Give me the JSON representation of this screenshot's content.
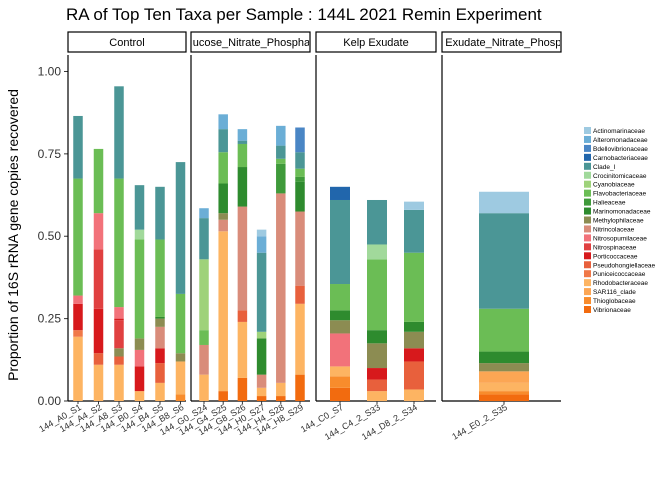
{
  "chart_data": {
    "type": "bar",
    "stacked": true,
    "title": "RA of Top Ten Taxa per Sample : 144L 2021 Remin Experiment",
    "xlabel": "",
    "ylabel": "Proportion of 16S rRNA gene copies recovered",
    "ylim": [
      0,
      1.05
    ],
    "yticks": [
      "0.00",
      "0.25",
      "0.50",
      "0.75",
      "1.00"
    ],
    "legend_position": "right",
    "taxa": [
      {
        "name": "Actinomarinaceae",
        "color": "#9ecae1"
      },
      {
        "name": "Alteromonadaceae",
        "color": "#6baed6"
      },
      {
        "name": "Bdellovibrionaceae",
        "color": "#4a86c5"
      },
      {
        "name": "Carnobacteriaceae",
        "color": "#2166ac"
      },
      {
        "name": "Clade_I",
        "color": "#4b9696"
      },
      {
        "name": "Crocinitomicaceae",
        "color": "#a1d99b"
      },
      {
        "name": "Cyanobiaceae",
        "color": "#9ed27a"
      },
      {
        "name": "Flavobacteriaceae",
        "color": "#6bbd55"
      },
      {
        "name": "Halieaceae",
        "color": "#3f9a3a"
      },
      {
        "name": "Marinomonadaceae",
        "color": "#2e8b2e"
      },
      {
        "name": "Methylophilaceae",
        "color": "#8c8c52"
      },
      {
        "name": "Nitrincolaceae",
        "color": "#d98c7a"
      },
      {
        "name": "Nitrosopumilaceae",
        "color": "#f2727a"
      },
      {
        "name": "Nitrospinaceae",
        "color": "#e04040"
      },
      {
        "name": "Porticoccaceae",
        "color": "#d7191c"
      },
      {
        "name": "Pseudohongiellaceae",
        "color": "#e8603c"
      },
      {
        "name": "Puniceicoccaceae",
        "color": "#f07848"
      },
      {
        "name": "Rhodobacteraceae",
        "color": "#fdb462"
      },
      {
        "name": "SAR116_clade",
        "color": "#fca654"
      },
      {
        "name": "Thioglobaceae",
        "color": "#f88c2c"
      },
      {
        "name": "Vibrionaceae",
        "color": "#f26b0f"
      }
    ],
    "facets": [
      {
        "label": "Control",
        "samples": [
          {
            "label": "144_A0_S1",
            "segments": [
              [
                "Rhodobacteraceae",
                0.195
              ],
              [
                "Puniceicoccaceae",
                0.02
              ],
              [
                "Porticoccaceae",
                0.08
              ],
              [
                "Nitrosopumilaceae",
                0.025
              ],
              [
                "Flavobacteriaceae",
                0.355
              ],
              [
                "Clade_I",
                0.19
              ]
            ]
          },
          {
            "label": "144_A4_S2",
            "segments": [
              [
                "Rhodobacteraceae",
                0.11
              ],
              [
                "Pseudohongiellaceae",
                0.035
              ],
              [
                "Porticoccaceae",
                0.135
              ],
              [
                "Nitrospinaceae",
                0.18
              ],
              [
                "Nitrosopumilaceae",
                0.11
              ],
              [
                "Flavobacteriaceae",
                0.195
              ]
            ]
          },
          {
            "label": "144_A8_S3",
            "segments": [
              [
                "Rhodobacteraceae",
                0.11
              ],
              [
                "Pseudohongiellaceae",
                0.025
              ],
              [
                "Methylophilaceae",
                0.025
              ],
              [
                "Nitrospinaceae",
                0.085
              ],
              [
                "Porticoccaceae",
                0.005
              ],
              [
                "Nitrosopumilaceae",
                0.035
              ],
              [
                "Flavobacteriaceae",
                0.39
              ],
              [
                "Clade_I",
                0.28
              ]
            ]
          },
          {
            "label": "144_B0_S4",
            "segments": [
              [
                "Rhodobacteraceae",
                0.03
              ],
              [
                "Porticoccaceae",
                0.075
              ],
              [
                "Nitrosopumilaceae",
                0.05
              ],
              [
                "Methylophilaceae",
                0.035
              ],
              [
                "Flavobacteriaceae",
                0.3
              ],
              [
                "Crocinitomicaceae",
                0.03
              ],
              [
                "Clade_I",
                0.135
              ]
            ]
          },
          {
            "label": "144_B4_S5",
            "segments": [
              [
                "Rhodobacteraceae",
                0.055
              ],
              [
                "Pseudohongiellaceae",
                0.06
              ],
              [
                "Porticoccaceae",
                0.045
              ],
              [
                "Nitrincolaceae",
                0.065
              ],
              [
                "Methylophilaceae",
                0.025
              ],
              [
                "Marinomonadaceae",
                0.005
              ],
              [
                "Flavobacteriaceae",
                0.235
              ],
              [
                "Clade_I",
                0.16
              ]
            ]
          },
          {
            "label": "144_B8_S6",
            "segments": [
              [
                "Thioglobaceae",
                0.02
              ],
              [
                "Rhodobacteraceae",
                0.1
              ],
              [
                "Methylophilaceae",
                0.025
              ],
              [
                "Flavobacteriaceae",
                0.18
              ],
              [
                "Clade_I",
                0.4
              ]
            ]
          }
        ]
      },
      {
        "label": "Glucose_Nitrate_Phosphate",
        "samples": [
          {
            "label": "144_G0_S24",
            "segments": [
              [
                "Rhodobacteraceae",
                0.08
              ],
              [
                "Nitrincolaceae",
                0.09
              ],
              [
                "Flavobacteriaceae",
                0.045
              ],
              [
                "Cyanobiaceae",
                0.215
              ],
              [
                "Clade_I",
                0.125
              ],
              [
                "Alteromonadaceae",
                0.03
              ]
            ]
          },
          {
            "label": "144_G4_S25",
            "segments": [
              [
                "Vibrionaceae",
                0.03
              ],
              [
                "Rhodobacteraceae",
                0.485
              ],
              [
                "Nitrincolaceae",
                0.035
              ],
              [
                "Methylophilaceae",
                0.02
              ],
              [
                "Marinomonadaceae",
                0.09
              ],
              [
                "Flavobacteriaceae",
                0.095
              ],
              [
                "Clade_I",
                0.07
              ],
              [
                "Alteromonadaceae",
                0.045
              ]
            ]
          },
          {
            "label": "144_G8_S26",
            "segments": [
              [
                "Vibrionaceae",
                0.07
              ],
              [
                "Rhodobacteraceae",
                0.17
              ],
              [
                "Pseudohongiellaceae",
                0.035
              ],
              [
                "Nitrincolaceae",
                0.315
              ],
              [
                "Marinomonadaceae",
                0.12
              ],
              [
                "Flavobacteriaceae",
                0.07
              ],
              [
                "Clade_I",
                0.01
              ],
              [
                "Alteromonadaceae",
                0.035
              ]
            ]
          },
          {
            "label": "144_H0_S27",
            "segments": [
              [
                "Vibrionaceae",
                0.015
              ],
              [
                "Rhodobacteraceae",
                0.025
              ],
              [
                "Nitrincolaceae",
                0.04
              ],
              [
                "Marinomonadaceae",
                0.11
              ],
              [
                "Cyanobiaceae",
                0.02
              ],
              [
                "Clade_I",
                0.24
              ],
              [
                "Alteromonadaceae",
                0.05
              ],
              [
                "Actinomarinaceae",
                0.02
              ]
            ]
          },
          {
            "label": "144_H4_S28",
            "segments": [
              [
                "Vibrionaceae",
                0.015
              ],
              [
                "Rhodobacteraceae",
                0.04
              ],
              [
                "Nitrincolaceae",
                0.575
              ],
              [
                "Halieaceae",
                0.09
              ],
              [
                "Flavobacteriaceae",
                0.015
              ],
              [
                "Clade_I",
                0.04
              ],
              [
                "Alteromonadaceae",
                0.06
              ]
            ]
          },
          {
            "label": "144_H8_S29",
            "segments": [
              [
                "Vibrionaceae",
                0.08
              ],
              [
                "Rhodobacteraceae",
                0.215
              ],
              [
                "Pseudohongiellaceae",
                0.055
              ],
              [
                "Nitrincolaceae",
                0.225
              ],
              [
                "Marinomonadaceae",
                0.09
              ],
              [
                "Halieaceae",
                0.015
              ],
              [
                "Flavobacteriaceae",
                0.025
              ],
              [
                "Clade_I",
                0.05
              ],
              [
                "Bdellovibrionaceae",
                0.075
              ]
            ]
          }
        ]
      },
      {
        "label": "Kelp Exudate",
        "samples": [
          {
            "label": "144_C0_S7",
            "segments": [
              [
                "Vibrionaceae",
                0.04
              ],
              [
                "Thioglobaceae",
                0.035
              ],
              [
                "Rhodobacteraceae",
                0.03
              ],
              [
                "Nitrosopumilaceae",
                0.1
              ],
              [
                "Methylophilaceae",
                0.04
              ],
              [
                "Marinomonadaceae",
                0.03
              ],
              [
                "Flavobacteriaceae",
                0.08
              ],
              [
                "Clade_I",
                0.255
              ],
              [
                "Carnobacteriaceae",
                0.04
              ]
            ]
          },
          {
            "label": "144_C4_2_S33",
            "segments": [
              [
                "Rhodobacteraceae",
                0.03
              ],
              [
                "Pseudohongiellaceae",
                0.035
              ],
              [
                "Porticoccaceae",
                0.035
              ],
              [
                "Methylophilaceae",
                0.075
              ],
              [
                "Marinomonadaceae",
                0.04
              ],
              [
                "Flavobacteriaceae",
                0.215
              ],
              [
                "Crocinitomicaceae",
                0.045
              ],
              [
                "Clade_I",
                0.135
              ]
            ]
          },
          {
            "label": "144_D8_2_S34",
            "segments": [
              [
                "Rhodobacteraceae",
                0.035
              ],
              [
                "Pseudohongiellaceae",
                0.085
              ],
              [
                "Porticoccaceae",
                0.04
              ],
              [
                "Methylophilaceae",
                0.05
              ],
              [
                "Marinomonadaceae",
                0.03
              ],
              [
                "Flavobacteriaceae",
                0.21
              ],
              [
                "Clade_I",
                0.13
              ],
              [
                "Actinomarinaceae",
                0.025
              ]
            ]
          }
        ]
      },
      {
        "label": "Kelp Exudate_Nitrate_Phosphate",
        "samples": [
          {
            "label": "144_E0_2_S35",
            "segments": [
              [
                "Vibrionaceae",
                0.02
              ],
              [
                "Thioglobaceae",
                0.01
              ],
              [
                "Rhodobacteraceae",
                0.025
              ],
              [
                "SAR116_clade",
                0.035
              ],
              [
                "Methylophilaceae",
                0.025
              ],
              [
                "Marinomonadaceae",
                0.035
              ],
              [
                "Flavobacteriaceae",
                0.13
              ],
              [
                "Clade_I",
                0.29
              ],
              [
                "Actinomarinaceae",
                0.065
              ]
            ]
          }
        ]
      }
    ]
  }
}
